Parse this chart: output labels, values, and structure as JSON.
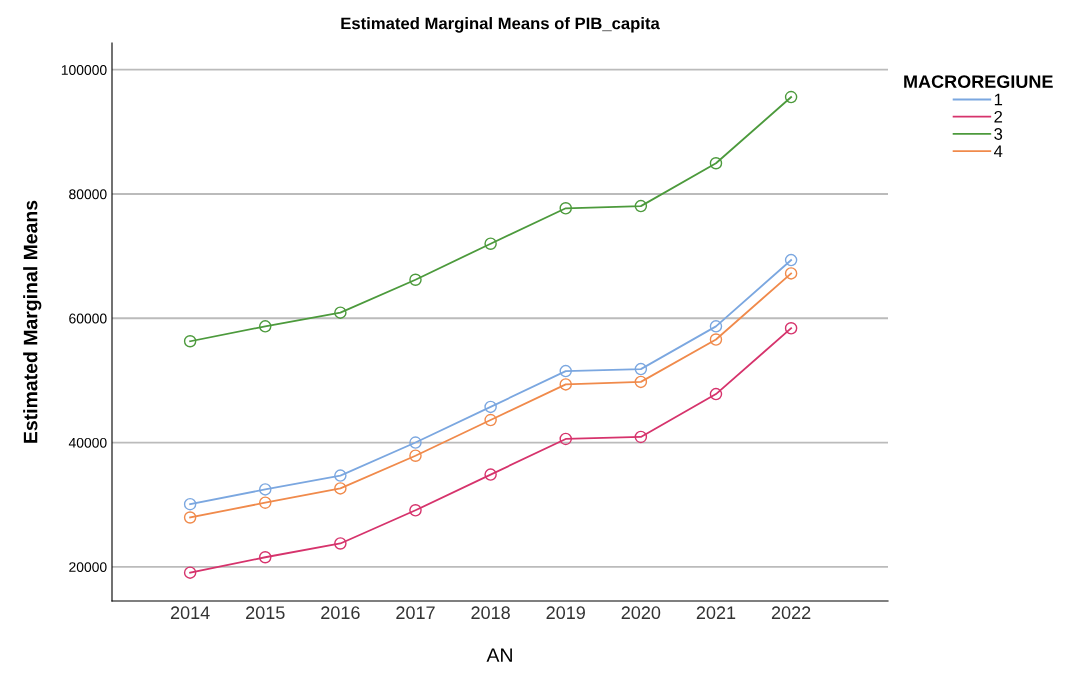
{
  "chart_data": {
    "type": "line",
    "title": "Estimated Marginal Means of PIB_capita",
    "xlabel": "AN",
    "ylabel": "Estimated Marginal Means",
    "legend_title": "MACROREGIUNE",
    "categories": [
      "2014",
      "2015",
      "2016",
      "2017",
      "2018",
      "2019",
      "2020",
      "2021",
      "2022"
    ],
    "series": [
      {
        "name": "1",
        "color": "#7ba7e0",
        "values": [
          30080,
          32460,
          34680,
          40000,
          45740,
          51500,
          51820,
          58700,
          69360
        ]
      },
      {
        "name": "2",
        "color": "#d6336c",
        "values": [
          19060,
          21540,
          23760,
          29100,
          34840,
          40580,
          40900,
          47800,
          58390
        ]
      },
      {
        "name": "3",
        "color": "#4c9a3c",
        "values": [
          56300,
          58700,
          60900,
          66200,
          72000,
          77700,
          78050,
          84950,
          95600
        ]
      },
      {
        "name": "4",
        "color": "#f08a4b",
        "values": [
          27940,
          30320,
          32620,
          37880,
          43620,
          49360,
          49760,
          56580,
          67220
        ]
      }
    ],
    "ylim": [
      14500,
      104300
    ],
    "yticks": [
      20000,
      40000,
      60000,
      80000,
      100000
    ],
    "grid": "y",
    "legend": "top right",
    "marker": "circle",
    "line_style": "solid"
  }
}
